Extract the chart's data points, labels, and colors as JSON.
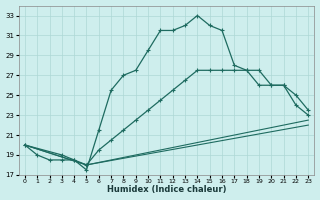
{
  "xlabel": "Humidex (Indice chaleur)",
  "bg_color": "#ceeeed",
  "grid_color": "#aed8d5",
  "line_color": "#1e6b60",
  "xlim": [
    -0.5,
    23.5
  ],
  "ylim": [
    17,
    34
  ],
  "xticks": [
    0,
    1,
    2,
    3,
    4,
    5,
    6,
    7,
    8,
    9,
    10,
    11,
    12,
    13,
    14,
    15,
    16,
    17,
    18,
    19,
    20,
    21,
    22,
    23
  ],
  "yticks": [
    17,
    19,
    21,
    23,
    25,
    27,
    29,
    31,
    33
  ],
  "line1_x": [
    0,
    1,
    2,
    3,
    4,
    5,
    6,
    7,
    8,
    9,
    10,
    11,
    12,
    13,
    14,
    15,
    16,
    17,
    18,
    19,
    20,
    21,
    22,
    23
  ],
  "line1_y": [
    20,
    19,
    18.5,
    18.5,
    18.5,
    17.5,
    21.5,
    25.5,
    27,
    27.5,
    29.5,
    31.5,
    31.5,
    32,
    33,
    32,
    31.5,
    28,
    27.5,
    26,
    26,
    26,
    24,
    23
  ],
  "line2_x": [
    0,
    3,
    4,
    5,
    6,
    7,
    8,
    9,
    10,
    11,
    12,
    13,
    14,
    15,
    16,
    17,
    18,
    19,
    20,
    21,
    22,
    23
  ],
  "line2_y": [
    20,
    19,
    18.5,
    18,
    19.5,
    20.5,
    21.5,
    22.5,
    23.5,
    24.5,
    25.5,
    26.5,
    27.5,
    27.5,
    27.5,
    27.5,
    27.5,
    27.5,
    26,
    26,
    25,
    23.5
  ],
  "line3_x": [
    0,
    5,
    23
  ],
  "line3_y": [
    20,
    18,
    22.5
  ],
  "line4_x": [
    0,
    5,
    23
  ],
  "line4_y": [
    20,
    18,
    22
  ]
}
